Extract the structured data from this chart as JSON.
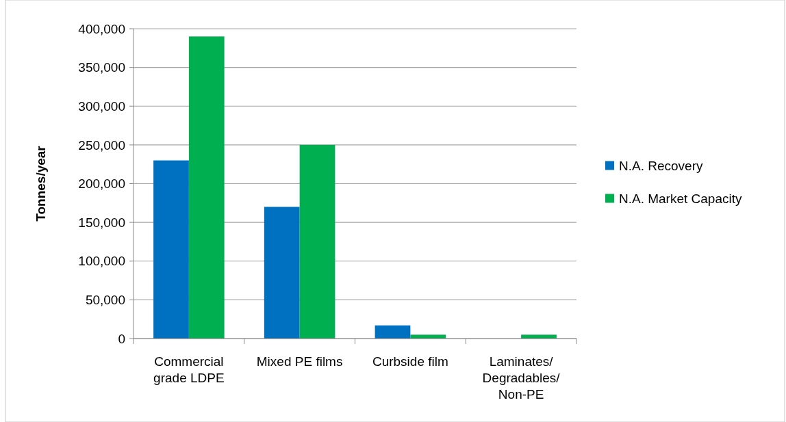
{
  "chart_data": {
    "type": "bar",
    "ylabel": "Tonnes/year",
    "categories": [
      "Commercial grade LDPE",
      "Mixed PE films",
      "Curbside film",
      "Laminates/ Degradables/ Non-PE"
    ],
    "series": [
      {
        "name": "N.A. Recovery",
        "color": "#0070c0",
        "values": [
          230000,
          170000,
          17000,
          0
        ]
      },
      {
        "name": "N.A. Market Capacity",
        "color": "#00b050",
        "values": [
          390000,
          250000,
          5000,
          5000
        ]
      }
    ],
    "ylim": [
      0,
      400000
    ],
    "yticks": [
      {
        "value": 0,
        "label": "0"
      },
      {
        "value": 50000,
        "label": "50,000"
      },
      {
        "value": 100000,
        "label": "100,000"
      },
      {
        "value": 150000,
        "label": "150,000"
      },
      {
        "value": 200000,
        "label": "200,000"
      },
      {
        "value": 250000,
        "label": "250,000"
      },
      {
        "value": 300000,
        "label": "300,000"
      },
      {
        "value": 350000,
        "label": "350,000"
      },
      {
        "value": 400000,
        "label": "400,000"
      }
    ],
    "grid": "y",
    "legend": "right"
  }
}
